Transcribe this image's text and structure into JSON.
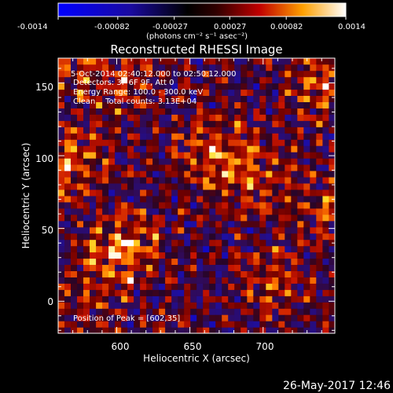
{
  "colorbar": {
    "min": -0.0014,
    "max": 0.0014,
    "tick_labels": [
      "-0.0014",
      "-0.00082",
      "-0.00027",
      "0.00027",
      "0.00082",
      "0.0014"
    ],
    "units_label": "(photons cm⁻² s⁻¹ asec⁻²)"
  },
  "plot": {
    "title": "Reconstructed RHESSI Image",
    "annotations": {
      "time_range": "5-Oct-2014 02:40:12.000 to 02:50:12.000",
      "detectors": "Detectors: 3F 6F 9F, Att 0",
      "energy": "Energy Range: 100.0 - 300.0 keV",
      "clean": "Clean    Total counts: 3.13E+04",
      "peak": "Position of Peak = [602,35]"
    },
    "xlabel": "Heliocentric X (arcsec)",
    "ylabel": "Heliocentric Y (arcsec)",
    "xticks": [
      "600",
      "650",
      "700"
    ],
    "yticks": [
      "0",
      "50",
      "100",
      "150"
    ],
    "footer_date": "26-May-2017 12:46"
  },
  "chart_data": {
    "type": "heatmap",
    "title": "Reconstructed RHESSI Image",
    "xlabel": "Heliocentric X (arcsec)",
    "ylabel": "Heliocentric Y (arcsec)",
    "xlim": [
      560,
      749
    ],
    "ylim": [
      -22,
      167
    ],
    "colorscale": "RHESSI blue-black-red-yellow-white",
    "zlim": [
      -0.0014,
      0.0014
    ],
    "peak_position": [
      602,
      35
    ],
    "bright_sources": [
      {
        "x": 602,
        "y": 35,
        "level": 1.0
      },
      {
        "x": 565,
        "y": 92,
        "level": 0.8
      },
      {
        "x": 665,
        "y": 103,
        "level": 0.7
      },
      {
        "x": 690,
        "y": 80,
        "level": 0.6
      },
      {
        "x": 735,
        "y": 145,
        "level": 0.6
      },
      {
        "x": 600,
        "y": 150,
        "level": 0.5
      },
      {
        "x": 560,
        "y": 160,
        "level": 0.5
      },
      {
        "x": 705,
        "y": 10,
        "level": 0.5
      },
      {
        "x": 740,
        "y": 60,
        "level": 0.5
      },
      {
        "x": 580,
        "y": 0,
        "level": 0.4
      }
    ]
  }
}
